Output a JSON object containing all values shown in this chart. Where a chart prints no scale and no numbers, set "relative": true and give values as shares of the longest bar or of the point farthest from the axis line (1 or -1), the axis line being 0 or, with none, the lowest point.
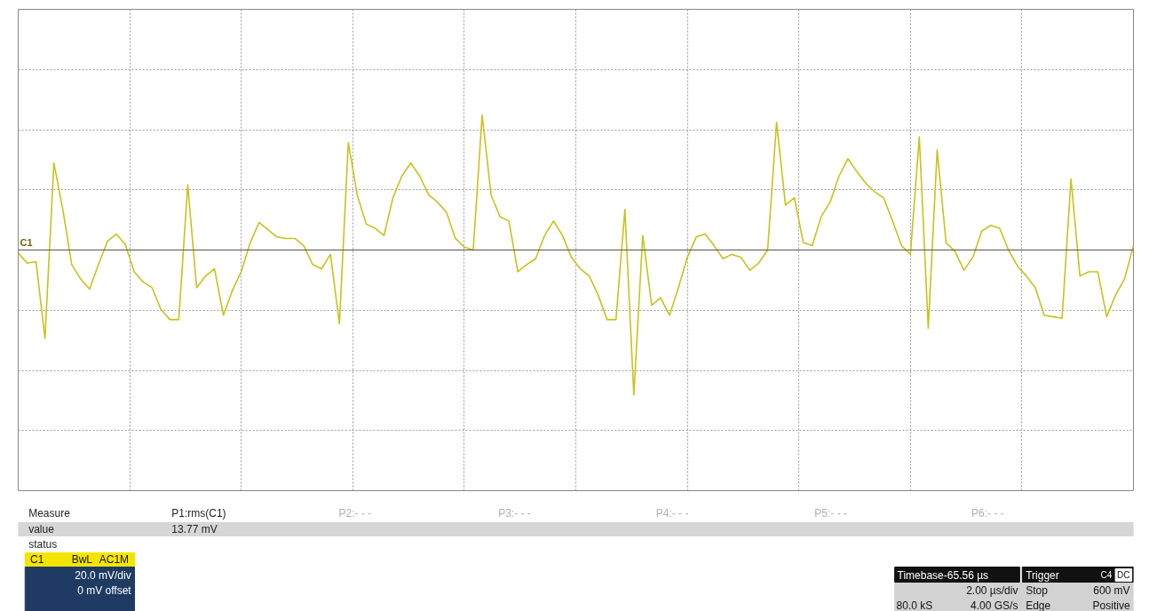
{
  "chart_data": {
    "type": "line",
    "relative": true,
    "grid": true,
    "categories": [
      null,
      null,
      null,
      null,
      null,
      null,
      null,
      null,
      null,
      null,
      null,
      null,
      null,
      null,
      null,
      null,
      null,
      null,
      null,
      null,
      null,
      null,
      null,
      null,
      null,
      null,
      null,
      null,
      null,
      null,
      null,
      null,
      null,
      null,
      null,
      null,
      null,
      null,
      null,
      null,
      null,
      null,
      null,
      null,
      null,
      null,
      null,
      null,
      null,
      null,
      null,
      null,
      null,
      null,
      null,
      null,
      null,
      null,
      null,
      null,
      null,
      null,
      null,
      null,
      null,
      null,
      null,
      null,
      null,
      null,
      null,
      null,
      null,
      null,
      null,
      null,
      null,
      null,
      null,
      null,
      null,
      null,
      null,
      null,
      null,
      null,
      null,
      null,
      null,
      null,
      null,
      null,
      null,
      null,
      null,
      null,
      null,
      null,
      null,
      null,
      null,
      null,
      null,
      null,
      null,
      null,
      null,
      null,
      null,
      null,
      null,
      null,
      null,
      null,
      null,
      null,
      null,
      null,
      null,
      null,
      null,
      null,
      null,
      null,
      null,
      null
    ],
    "series": [
      {
        "color": "#c9c21a",
        "values": [
          -0.02,
          -0.09,
          -0.08,
          -0.61,
          0.6,
          0.28,
          -0.1,
          -0.2,
          -0.27,
          -0.1,
          0.06,
          0.11,
          0.04,
          -0.15,
          -0.22,
          -0.26,
          -0.41,
          -0.48,
          -0.48,
          0.45,
          -0.26,
          -0.18,
          -0.13,
          -0.45,
          -0.28,
          -0.15,
          0.05,
          0.19,
          0.14,
          0.09,
          0.08,
          0.08,
          0.03,
          -0.1,
          -0.13,
          -0.03,
          -0.51,
          0.74,
          0.38,
          0.18,
          0.15,
          0.1,
          0.36,
          0.51,
          0.6,
          0.51,
          0.38,
          0.33,
          0.26,
          0.08,
          0.02,
          0,
          0.93,
          0.38,
          0.23,
          0.2,
          -0.15,
          -0.1,
          -0.06,
          0.1,
          0.2,
          0.1,
          -0.05,
          -0.13,
          -0.18,
          -0.31,
          -0.48,
          -0.48,
          0.28,
          -1,
          0.1,
          -0.38,
          -0.33,
          -0.45,
          -0.26,
          -0.05,
          0.09,
          0.11,
          0.03,
          -0.06,
          -0.03,
          -0.05,
          -0.14,
          -0.09,
          0,
          0.88,
          0.31,
          0.36,
          0.05,
          0.03,
          0.23,
          0.33,
          0.51,
          0.63,
          0.54,
          0.46,
          0.4,
          0.36,
          0.2,
          0.03,
          -0.03,
          0.78,
          -0.54,
          0.69,
          0.05,
          -0.01,
          -0.14,
          -0.05,
          0.13,
          0.17,
          0.15,
          0,
          -0.11,
          -0.18,
          -0.26,
          -0.45,
          -0.46,
          -0.47,
          0.49,
          -0.18,
          -0.15,
          -0.15,
          -0.46,
          -0.31,
          -0.2,
          0.03
        ]
      }
    ],
    "annotations": [
      "Measure",
      "P1:rms(C1)",
      "P2:- - -",
      "P3:- - -",
      "P4:- - -",
      "P5:- - -",
      "P6:- - -",
      "value",
      "13.77 mV",
      "status",
      "C1",
      "BwL",
      "AC1M",
      "20.0 mV/div",
      "0 mV offset",
      "Timebase-65.56 µs",
      "Trigger",
      "C4",
      "DC",
      "2.00 µs/div",
      "Stop",
      "600 mV",
      "80.0 kS",
      "4.00 GS/s",
      "Edge",
      "Positive",
      "C1"
    ]
  }
}
